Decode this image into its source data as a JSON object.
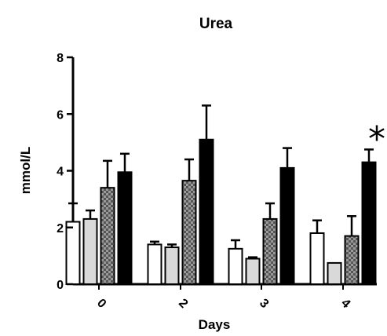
{
  "chart_data": {
    "type": "bar",
    "title": "Urea",
    "xlabel": "Days",
    "ylabel": "mmol/L",
    "ylim": [
      0,
      8
    ],
    "yticks": [
      "0",
      "2",
      "4",
      "6",
      "8"
    ],
    "categories": [
      "0",
      "2",
      "3",
      "4"
    ],
    "grid": false,
    "legend": "none",
    "series": [
      {
        "fill": "#ffffff",
        "pattern": "solid",
        "values": [
          2.2,
          1.4,
          1.25,
          1.8
        ],
        "errors": [
          0.65,
          0.1,
          0.3,
          0.45
        ]
      },
      {
        "fill": "#d9d9d9",
        "pattern": "solid",
        "values": [
          2.3,
          1.3,
          0.9,
          0.75
        ],
        "errors": [
          0.3,
          0.1,
          0.05,
          0.0
        ]
      },
      {
        "fill": "#6f6f6f",
        "pattern": "checker",
        "values": [
          3.4,
          3.65,
          2.3,
          1.7
        ],
        "errors": [
          0.95,
          0.75,
          0.55,
          0.7
        ]
      },
      {
        "fill": "#000000",
        "pattern": "solid",
        "values": [
          3.95,
          5.1,
          4.1,
          4.3
        ],
        "errors": [
          0.65,
          1.2,
          0.7,
          0.45
        ]
      }
    ],
    "annotations": [
      {
        "text": "*",
        "category": "4"
      }
    ]
  }
}
